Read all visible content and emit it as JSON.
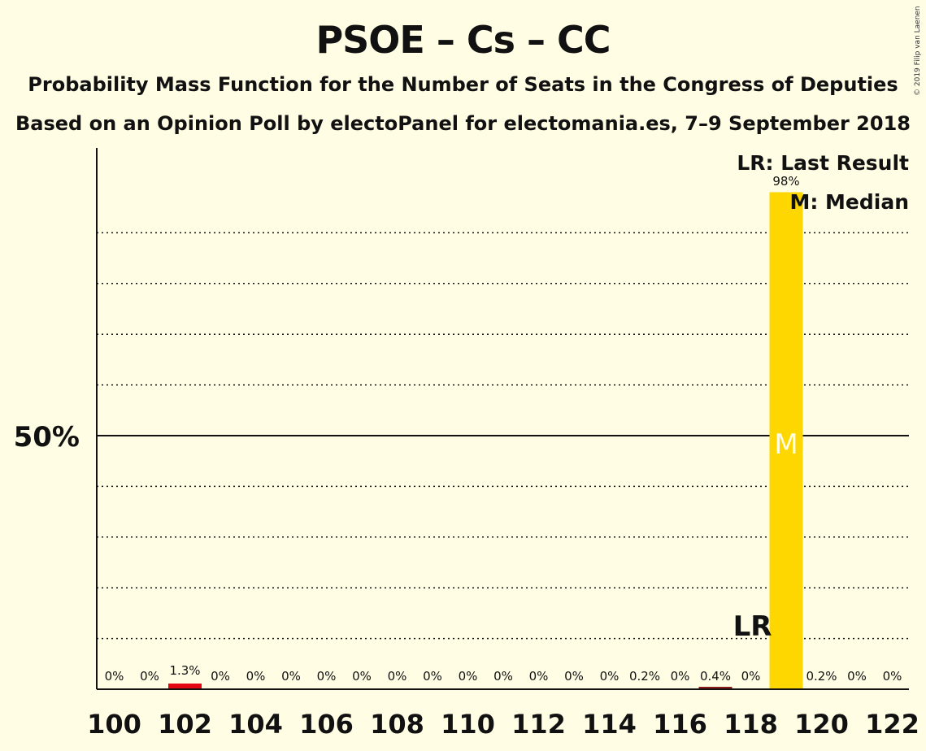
{
  "header": {
    "title": "PSOE – Cs – CC",
    "subtitle1": "Probability Mass Function for the Number of Seats in the Congress of Deputies",
    "subtitle2": "Based on an Opinion Poll by electoPanel for electomania.es, 7–9 September 2018",
    "copyright": "© 2019 Filip van Laenen"
  },
  "legend": {
    "lr": "LR: Last Result",
    "m": "M: Median"
  },
  "colors": {
    "background": "#FFFDE4",
    "median_bar": "#FFD700",
    "bar_102": "#E30613",
    "bar_117": "#8B1A1A",
    "median_marker": "#FFFDE4"
  },
  "chart_data": {
    "type": "bar",
    "x": [
      100,
      101,
      102,
      103,
      104,
      105,
      106,
      107,
      108,
      109,
      110,
      111,
      112,
      113,
      114,
      115,
      116,
      117,
      118,
      119,
      120,
      121,
      122
    ],
    "values": [
      0,
      0,
      1.3,
      0,
      0,
      0,
      0,
      0,
      0,
      0,
      0,
      0,
      0,
      0,
      0,
      0.2,
      0,
      0.4,
      0,
      98,
      0.2,
      0,
      0
    ],
    "labels": [
      "0%",
      "0%",
      "1.3%",
      "0%",
      "0%",
      "0%",
      "0%",
      "0%",
      "0%",
      "0%",
      "0%",
      "0%",
      "0%",
      "0%",
      "0%",
      "0.2%",
      "0%",
      "0.4%",
      "0%",
      "98%",
      "0.2%",
      "0%",
      "0%"
    ],
    "x_tick_labels": [
      "100",
      "102",
      "104",
      "106",
      "108",
      "110",
      "112",
      "114",
      "116",
      "118",
      "120",
      "122"
    ],
    "y_tick_label": "50%",
    "ylim": [
      0,
      100
    ],
    "gridlines_dotted": [
      10,
      20,
      30,
      40,
      60,
      70,
      80,
      90
    ],
    "gridline_solid": 50,
    "last_result": 118,
    "last_result_label": "LR",
    "median": 119,
    "median_label": "M"
  }
}
